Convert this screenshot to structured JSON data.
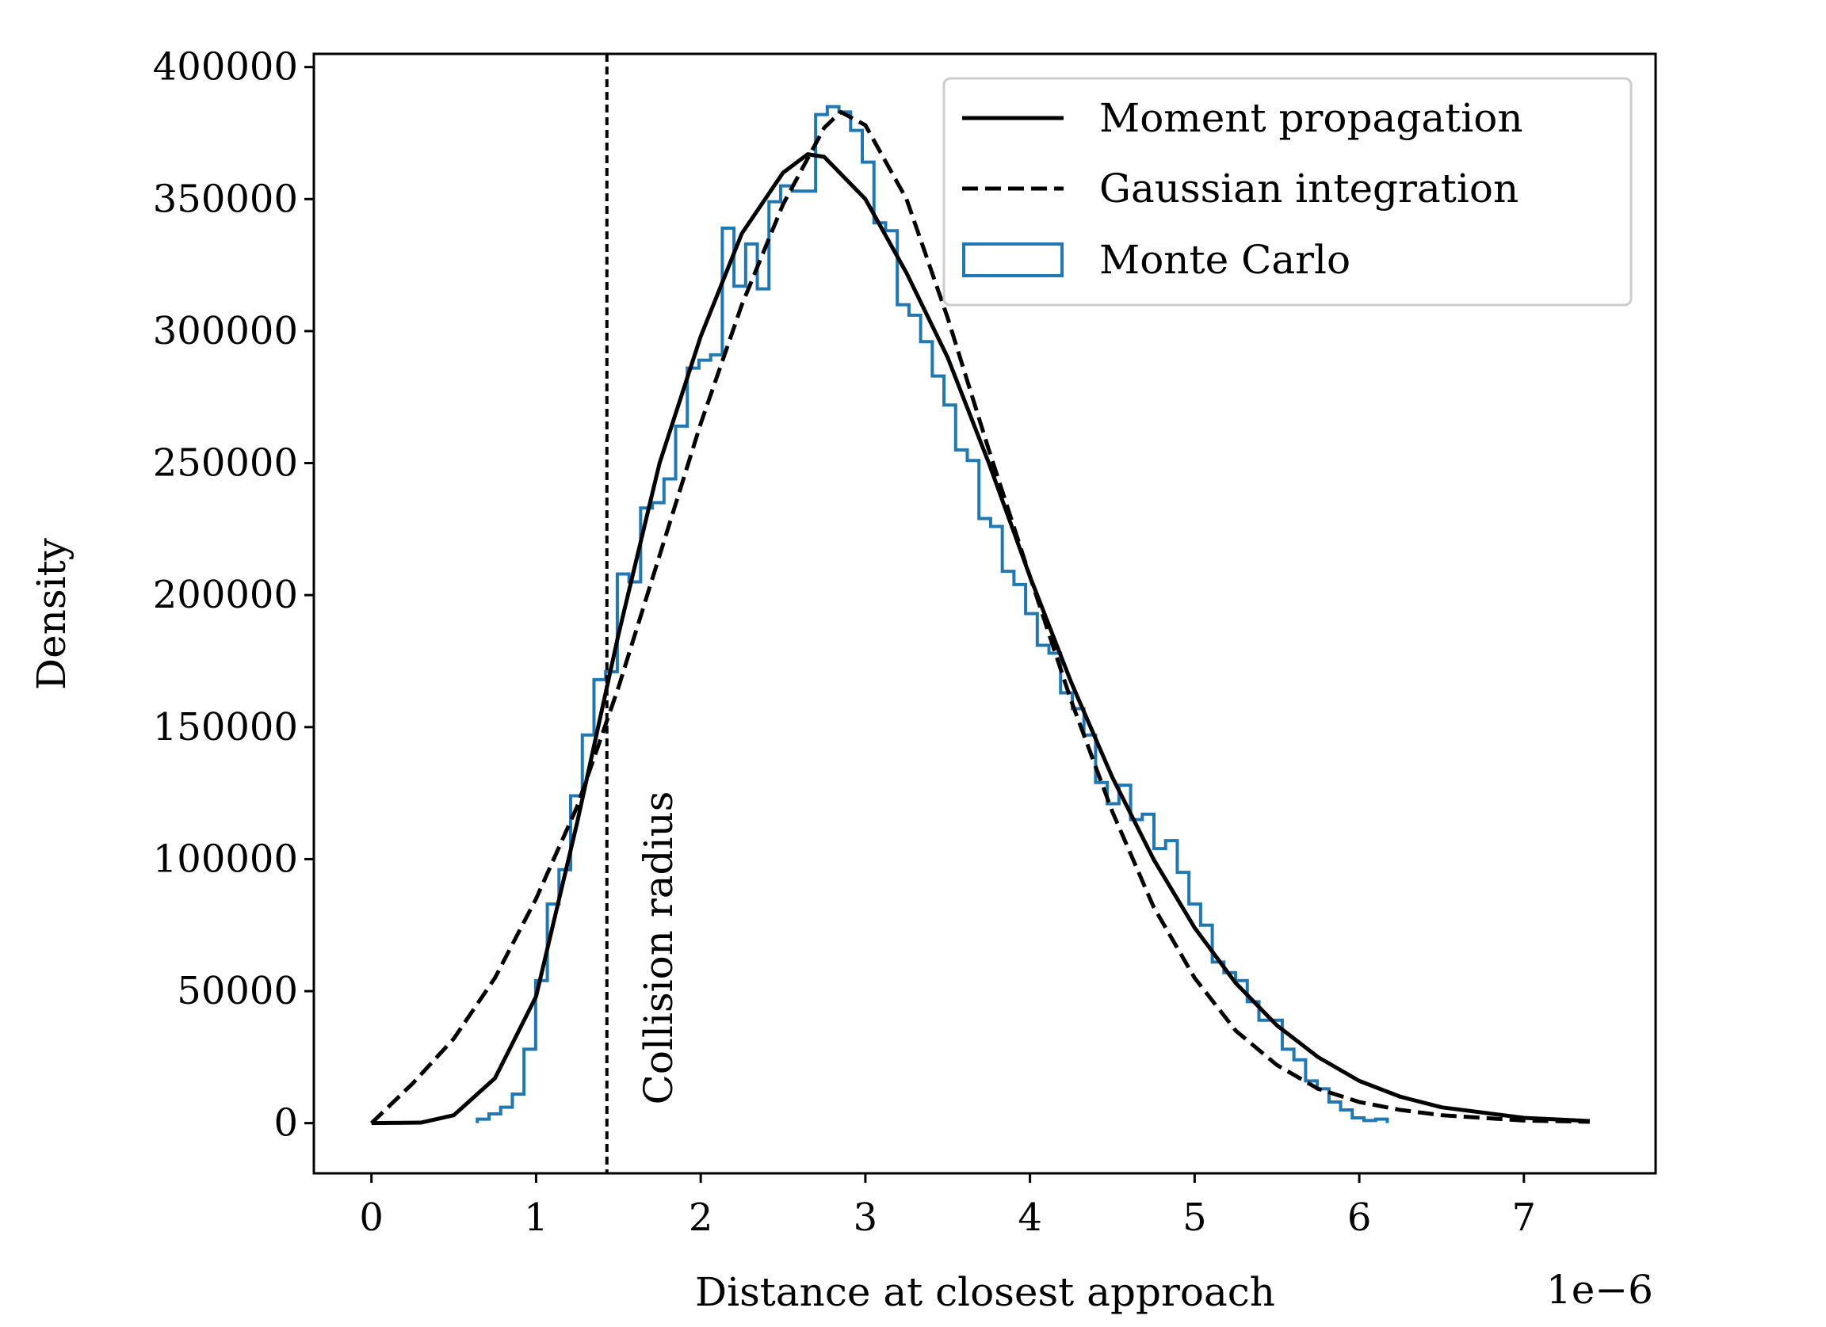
{
  "chart_data": {
    "type": "line",
    "title": "",
    "xlabel": "Distance at closest approach",
    "ylabel": "Density",
    "x_offset_label": "1e−6",
    "xlim": [
      -0.35,
      7.8
    ],
    "ylim": [
      -19000,
      405000
    ],
    "x_ticks": [
      "0",
      "1",
      "2",
      "3",
      "4",
      "5",
      "6",
      "7"
    ],
    "y_ticks": [
      "0",
      "50000",
      "100000",
      "150000",
      "200000",
      "250000",
      "300000",
      "350000",
      "400000"
    ],
    "grid": false,
    "legend_placement": "top-right",
    "colors": {
      "moment": "#000000",
      "gaussian": "#000000",
      "monte_carlo": "#1f77b4"
    },
    "annotation": {
      "text": "Collision radius",
      "x": 1.43
    },
    "series": [
      {
        "name": "Moment propagation",
        "style": "solid",
        "x": [
          0,
          0.3,
          0.5,
          0.75,
          1.0,
          1.25,
          1.5,
          1.75,
          2.0,
          2.25,
          2.5,
          2.65,
          2.75,
          3.0,
          3.25,
          3.5,
          3.75,
          4.0,
          4.25,
          4.5,
          4.75,
          5.0,
          5.25,
          5.5,
          5.75,
          6.0,
          6.25,
          6.5,
          7.0,
          7.4
        ],
        "y": [
          0,
          200,
          3000,
          17000,
          48000,
          114000,
          185000,
          250000,
          298000,
          337000,
          360000,
          367000,
          366000,
          350000,
          322000,
          290000,
          250000,
          207000,
          167000,
          131000,
          100000,
          74000,
          53000,
          37000,
          25000,
          16000,
          10000,
          6000,
          2000,
          800
        ]
      },
      {
        "name": "Gaussian integration",
        "style": "dashed",
        "x": [
          0,
          0.25,
          0.5,
          0.75,
          1.0,
          1.25,
          1.5,
          1.75,
          2.0,
          2.25,
          2.5,
          2.75,
          2.85,
          3.0,
          3.25,
          3.5,
          3.75,
          4.0,
          4.25,
          4.5,
          4.75,
          5.0,
          5.25,
          5.5,
          5.75,
          6.0,
          6.25,
          6.5,
          7.0,
          7.4
        ],
        "y": [
          0,
          15000,
          32000,
          55000,
          85000,
          120000,
          165000,
          215000,
          265000,
          310000,
          348000,
          377000,
          383000,
          378000,
          350000,
          305000,
          255000,
          207000,
          160000,
          118000,
          82000,
          55000,
          35000,
          22000,
          13000,
          8000,
          5000,
          3000,
          1000,
          500
        ]
      },
      {
        "name": "Monte Carlo",
        "style": "step-histogram",
        "bin_range": [
          0.643,
          6.17
        ],
        "values": [
          1500,
          3500,
          6000,
          11000,
          28000,
          54000,
          83000,
          96000,
          124000,
          147000,
          168000,
          171000,
          208000,
          205000,
          233000,
          235000,
          244000,
          264000,
          286000,
          289000,
          291000,
          339000,
          317000,
          333000,
          316000,
          349000,
          355000,
          353000,
          353000,
          382000,
          385000,
          383000,
          376000,
          364000,
          341000,
          338000,
          310000,
          306000,
          296000,
          283000,
          272000,
          255000,
          251000,
          229000,
          226000,
          209000,
          204000,
          193000,
          181000,
          178000,
          163000,
          157000,
          147000,
          129000,
          121000,
          128000,
          115000,
          117000,
          104000,
          107000,
          95000,
          83000,
          75000,
          61000,
          57000,
          54000,
          46000,
          39000,
          39000,
          28000,
          24000,
          16000,
          13000,
          8000,
          5000,
          2000,
          1000,
          1500
        ]
      }
    ]
  }
}
